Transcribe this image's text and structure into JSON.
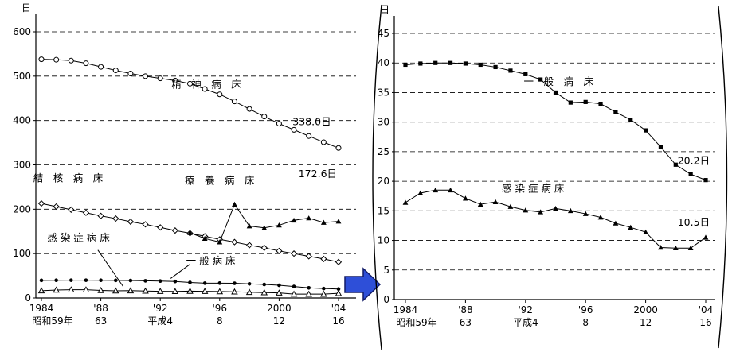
{
  "figure": {
    "unit_label": "日",
    "arrow_color": "#2e4fd8",
    "arrow_edge_color": "#101a66",
    "line_color": "#000000"
  },
  "chart_data": [
    {
      "type": "line",
      "id": "overview",
      "unit": "日",
      "x_range": [
        1984,
        2004
      ],
      "ylim": [
        0,
        600
      ],
      "ytick_step": 100,
      "grid": "dashed-horizontal",
      "x_ticks": [
        {
          "year": 1984,
          "top": "1984",
          "bottom": "昭和59年"
        },
        {
          "year": 1988,
          "top": "'88",
          "bottom": "63"
        },
        {
          "year": 1992,
          "top": "'92",
          "bottom": "平成4"
        },
        {
          "year": 1996,
          "top": "'96",
          "bottom": "8"
        },
        {
          "year": 2000,
          "top": "2000",
          "bottom": "12"
        },
        {
          "year": 2004,
          "top": "'04",
          "bottom": "16"
        }
      ],
      "series": [
        {
          "name": "精神病床",
          "marker": "open-circle",
          "values": [
            538,
            537,
            535,
            529,
            521,
            513,
            506,
            500,
            495,
            490,
            483,
            471,
            459,
            443,
            426,
            409,
            393,
            379,
            365,
            351,
            338
          ]
        },
        {
          "name": "結核病床",
          "marker": "open-diamond",
          "values": [
            213,
            206,
            199,
            192,
            185,
            179,
            172,
            166,
            159,
            152,
            146,
            139,
            132,
            126,
            119,
            113,
            106,
            100,
            94,
            88,
            81
          ]
        },
        {
          "name": "療養病床",
          "marker": "filled-triangle",
          "start_year": 1994,
          "values": [
            147,
            134,
            126,
            211,
            162,
            158,
            164,
            175,
            180,
            170,
            172.6
          ]
        },
        {
          "name": "一般病床",
          "marker": "filled-circle",
          "values": [
            39.7,
            39.9,
            40,
            40,
            39.9,
            39.7,
            39.3,
            38.7,
            38.1,
            37.2,
            35,
            33.3,
            33.4,
            33.1,
            31.7,
            30.4,
            28.6,
            25.8,
            22.8,
            21.2,
            20.2
          ]
        },
        {
          "name": "感染症病床",
          "marker": "open-triangle",
          "values": [
            16.4,
            18,
            18.5,
            18.5,
            17.1,
            16.1,
            16.5,
            15.7,
            15.1,
            14.8,
            15.4,
            15,
            14.5,
            13.9,
            12.9,
            12.2,
            11.4,
            8.8,
            8.7,
            8.7,
            10.5
          ]
        }
      ],
      "annotations": [
        {
          "text": "精　神　病　床",
          "x": 1995.1,
          "y": 474
        },
        {
          "text": "338.0日",
          "x": 2002.2,
          "y": 390
        },
        {
          "text": "結　核　病　床",
          "x": 1985.8,
          "y": 262
        },
        {
          "text": "療　養　病　床",
          "x": 1996.0,
          "y": 257
        },
        {
          "text": "172.6日",
          "x": 2002.6,
          "y": 272
        },
        {
          "text": "感 染 症 病 床",
          "x": 1986.5,
          "y": 128,
          "leader": [
            [
              1987.8,
              108
            ],
            [
              1989.5,
              26
            ]
          ]
        },
        {
          "text": "一 般 病 床",
          "x": 1995.4,
          "y": 76,
          "leader": [
            [
              1994.0,
              76
            ],
            [
              1992.7,
              44
            ]
          ]
        }
      ]
    },
    {
      "type": "line",
      "id": "enlarged",
      "unit": "日",
      "x_range": [
        1984,
        2004
      ],
      "ylim": [
        0,
        45
      ],
      "ytick_step": 5,
      "grid": "dashed-horizontal",
      "x_ticks": [
        {
          "year": 1984,
          "top": "1984",
          "bottom": "昭和59年"
        },
        {
          "year": 1988,
          "top": "'88",
          "bottom": "63"
        },
        {
          "year": 1992,
          "top": "'92",
          "bottom": "平成4"
        },
        {
          "year": 1996,
          "top": "'96",
          "bottom": "8"
        },
        {
          "year": 2000,
          "top": "2000",
          "bottom": "12"
        },
        {
          "year": 2004,
          "top": "'04",
          "bottom": "16"
        }
      ],
      "series": [
        {
          "name": "一般病床",
          "marker": "filled-square",
          "values": [
            39.7,
            39.9,
            40,
            40,
            39.9,
            39.7,
            39.3,
            38.7,
            38.1,
            37.2,
            35,
            33.3,
            33.4,
            33.1,
            31.7,
            30.4,
            28.6,
            25.8,
            22.8,
            21.2,
            20.2
          ]
        },
        {
          "name": "感染症病床",
          "marker": "filled-triangle",
          "values": [
            16.4,
            18,
            18.5,
            18.5,
            17.1,
            16.1,
            16.5,
            15.7,
            15.1,
            14.8,
            15.4,
            15,
            14.5,
            13.9,
            12.9,
            12.2,
            11.4,
            8.8,
            8.7,
            8.7,
            10.5
          ]
        }
      ],
      "annotations": [
        {
          "text": "一　般　病　床",
          "x": 1994.2,
          "y": 36.3
        },
        {
          "text": "感 染 症 病 床",
          "x": 1992.5,
          "y": 18.2
        },
        {
          "text": "20.2日",
          "x": 2003.2,
          "y": 22.9
        },
        {
          "text": "10.5日",
          "x": 2003.2,
          "y": 12.5
        }
      ]
    }
  ]
}
